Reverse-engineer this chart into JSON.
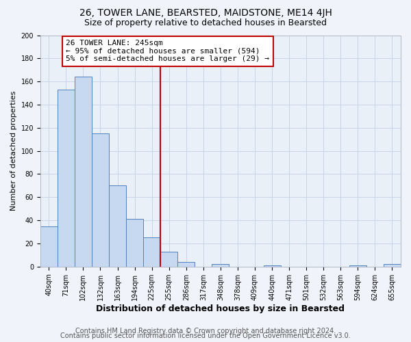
{
  "title": "26, TOWER LANE, BEARSTED, MAIDSTONE, ME14 4JH",
  "subtitle": "Size of property relative to detached houses in Bearsted",
  "xlabel": "Distribution of detached houses by size in Bearsted",
  "ylabel": "Number of detached properties",
  "bin_labels": [
    "40sqm",
    "71sqm",
    "102sqm",
    "132sqm",
    "163sqm",
    "194sqm",
    "225sqm",
    "255sqm",
    "286sqm",
    "317sqm",
    "348sqm",
    "378sqm",
    "409sqm",
    "440sqm",
    "471sqm",
    "501sqm",
    "532sqm",
    "563sqm",
    "594sqm",
    "624sqm",
    "655sqm"
  ],
  "bar_values": [
    35,
    153,
    164,
    115,
    70,
    41,
    25,
    13,
    4,
    0,
    2,
    0,
    0,
    1,
    0,
    0,
    0,
    0,
    1,
    0,
    2
  ],
  "bar_color": "#c6d9f0",
  "bar_edge_color": "#4f81bd",
  "vline_x": 6.5,
  "vline_color": "#c00000",
  "annotation_text": "26 TOWER LANE: 245sqm\n← 95% of detached houses are smaller (594)\n5% of semi-detached houses are larger (29) →",
  "annotation_box_color": "#ffffff",
  "annotation_box_edge": "#c00000",
  "ylim": [
    0,
    200
  ],
  "yticks": [
    0,
    20,
    40,
    60,
    80,
    100,
    120,
    140,
    160,
    180,
    200
  ],
  "footer1": "Contains HM Land Registry data © Crown copyright and database right 2024.",
  "footer2": "Contains public sector information licensed under the Open Government Licence v3.0.",
  "title_fontsize": 10,
  "subtitle_fontsize": 9,
  "xlabel_fontsize": 9,
  "ylabel_fontsize": 8,
  "tick_fontsize": 7,
  "annotation_fontsize": 8,
  "footer_fontsize": 7,
  "bg_color": "#f0f4fa",
  "plot_bg_color": "#eaf0f8",
  "grid_color": "#c8d4e8"
}
